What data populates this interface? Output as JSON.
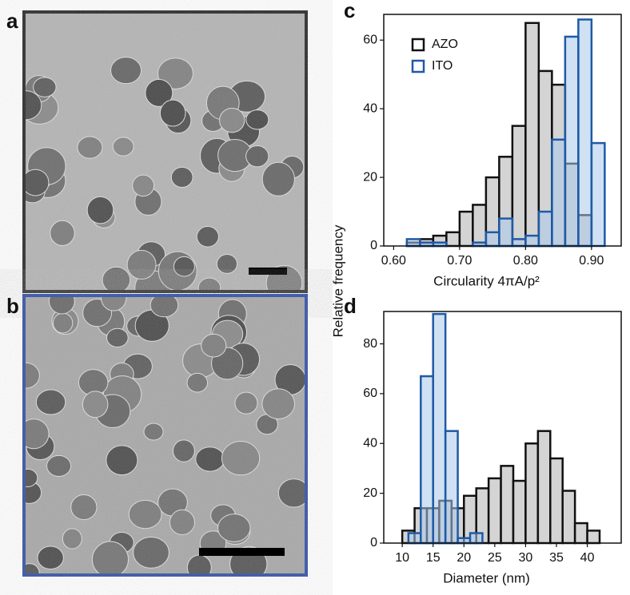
{
  "panel_labels": [
    "a",
    "b",
    "c",
    "d"
  ],
  "ylabel": "Relative frequency",
  "chart_data": [
    {
      "type": "histogram",
      "xlabel": "Circularity 4πA/p²",
      "xlim": [
        0.585,
        0.945
      ],
      "ylim": [
        0,
        67.5
      ],
      "xticks": [
        {
          "value": 0.6,
          "label": "0.60"
        },
        {
          "value": 0.7,
          "label": "0.70"
        },
        {
          "value": 0.8,
          "label": "0.80"
        },
        {
          "value": 0.9,
          "label": "0.90"
        }
      ],
      "yticks": [
        0,
        20,
        40,
        60
      ],
      "legend": "upper left",
      "series": [
        {
          "name": "AZO",
          "color": "#111111",
          "fill": "#d4d4d4",
          "bins": [
            0.6,
            0.62,
            0.64,
            0.66,
            0.68,
            0.7,
            0.72,
            0.74,
            0.76,
            0.78,
            0.8,
            0.82,
            0.84,
            0.86,
            0.88,
            0.9,
            0.92
          ],
          "values": [
            0,
            1,
            2,
            3,
            4,
            10,
            12,
            20,
            26,
            35,
            65,
            51,
            47,
            24,
            9,
            0
          ]
        },
        {
          "name": "ITO",
          "color": "#1f5aa6",
          "fill": "rgba(170,200,235,0.55)",
          "bins": [
            0.6,
            0.62,
            0.64,
            0.66,
            0.68,
            0.7,
            0.72,
            0.74,
            0.76,
            0.78,
            0.8,
            0.82,
            0.84,
            0.86,
            0.88,
            0.9,
            0.92
          ],
          "values": [
            0,
            2,
            1,
            1,
            0,
            0,
            1,
            4,
            8,
            2,
            3,
            10,
            31,
            61,
            66,
            30
          ]
        }
      ]
    },
    {
      "type": "histogram",
      "xlabel": "Diameter (nm)",
      "xlim": [
        7,
        45.5
      ],
      "ylim": [
        0,
        93
      ],
      "xticks": [
        10,
        15,
        20,
        25,
        30,
        35,
        40
      ],
      "yticks": [
        0,
        20,
        40,
        60,
        80
      ],
      "series": [
        {
          "name": "AZO",
          "color": "#111111",
          "fill": "#d4d4d4",
          "bins": [
            10,
            12,
            14,
            16,
            18,
            20,
            22,
            24,
            26,
            28,
            30,
            32,
            34,
            36,
            38,
            40,
            42
          ],
          "values": [
            5,
            14,
            14,
            17,
            14,
            19,
            22,
            26,
            31,
            25,
            40,
            45,
            34,
            21,
            8,
            5
          ]
        },
        {
          "name": "ITO",
          "color": "#1f5aa6",
          "fill": "rgba(170,200,235,0.55)",
          "bins": [
            11,
            13,
            15,
            17,
            19,
            21,
            23
          ],
          "values": [
            4,
            67,
            92,
            45,
            2,
            4
          ]
        }
      ]
    }
  ]
}
